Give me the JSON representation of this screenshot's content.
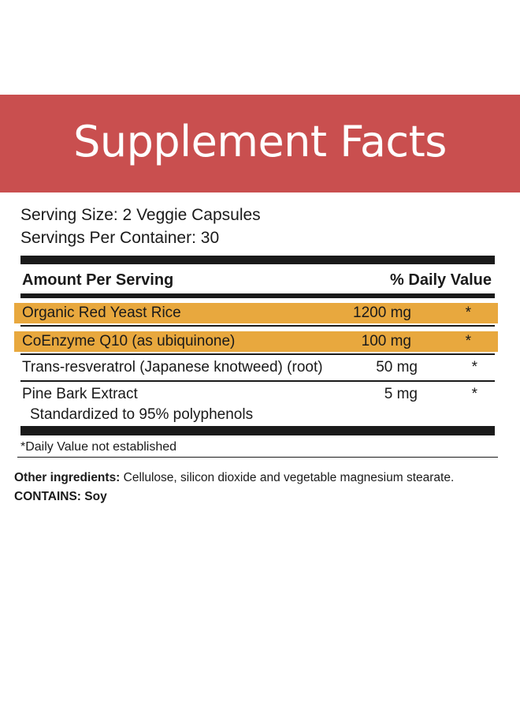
{
  "banner": {
    "title": "Supplement Facts",
    "color": "#c94f4f"
  },
  "serving": {
    "size": "Serving Size: 2 Veggie Capsules",
    "per_container": "Servings Per Container: 30"
  },
  "table": {
    "header_left": "Amount Per Serving",
    "header_right": "% Daily Value",
    "highlight_color": "#e8a83e",
    "rows": [
      {
        "name": "Organic Red Yeast Rice",
        "amount": "1200 mg",
        "dv": "*",
        "highlighted": true
      },
      {
        "name": "CoEnzyme Q10 (as ubiquinone)",
        "amount": "100 mg",
        "dv": "*",
        "highlighted": true
      },
      {
        "name": "Trans-resveratrol (Japanese knotweed) (root)",
        "amount": "50 mg",
        "dv": "*",
        "highlighted": false
      },
      {
        "name": "Pine Bark Extract",
        "sub": "Standardized to 95% polyphenols",
        "amount": "5 mg",
        "dv": "*",
        "highlighted": false
      }
    ]
  },
  "footnote": "*Daily Value not established",
  "other_ingredients": {
    "label": "Other ingredients:",
    "text": " Cellulose, silicon dioxide and vegetable magnesium stearate."
  },
  "contains": {
    "label": "CONTAINS: Soy"
  }
}
